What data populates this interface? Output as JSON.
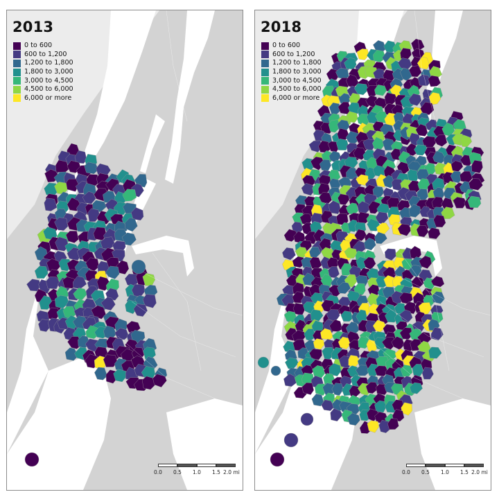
{
  "legend": {
    "items": [
      {
        "label": "0 to 600",
        "color": "#440154"
      },
      {
        "label": "600 to 1,200",
        "color": "#443a83"
      },
      {
        "label": "1,200 to 1,800",
        "color": "#31688e"
      },
      {
        "label": "1,800 to 3,000",
        "color": "#21908d"
      },
      {
        "label": "3,000 to 4,500",
        "color": "#35b779"
      },
      {
        "label": "4,500 to 6,000",
        "color": "#8fd744"
      },
      {
        "label": "6,000 or more",
        "color": "#fde725"
      }
    ]
  },
  "scale": {
    "ticks": [
      "0.0",
      "0.5",
      "1.0",
      "1.5",
      "2.0 mi"
    ]
  },
  "colors": {
    "land": "#d3d3d3",
    "water": "#ffffff",
    "outside": "#ececec"
  },
  "panels": [
    {
      "title": "2013"
    },
    {
      "title": "2018"
    }
  ]
}
